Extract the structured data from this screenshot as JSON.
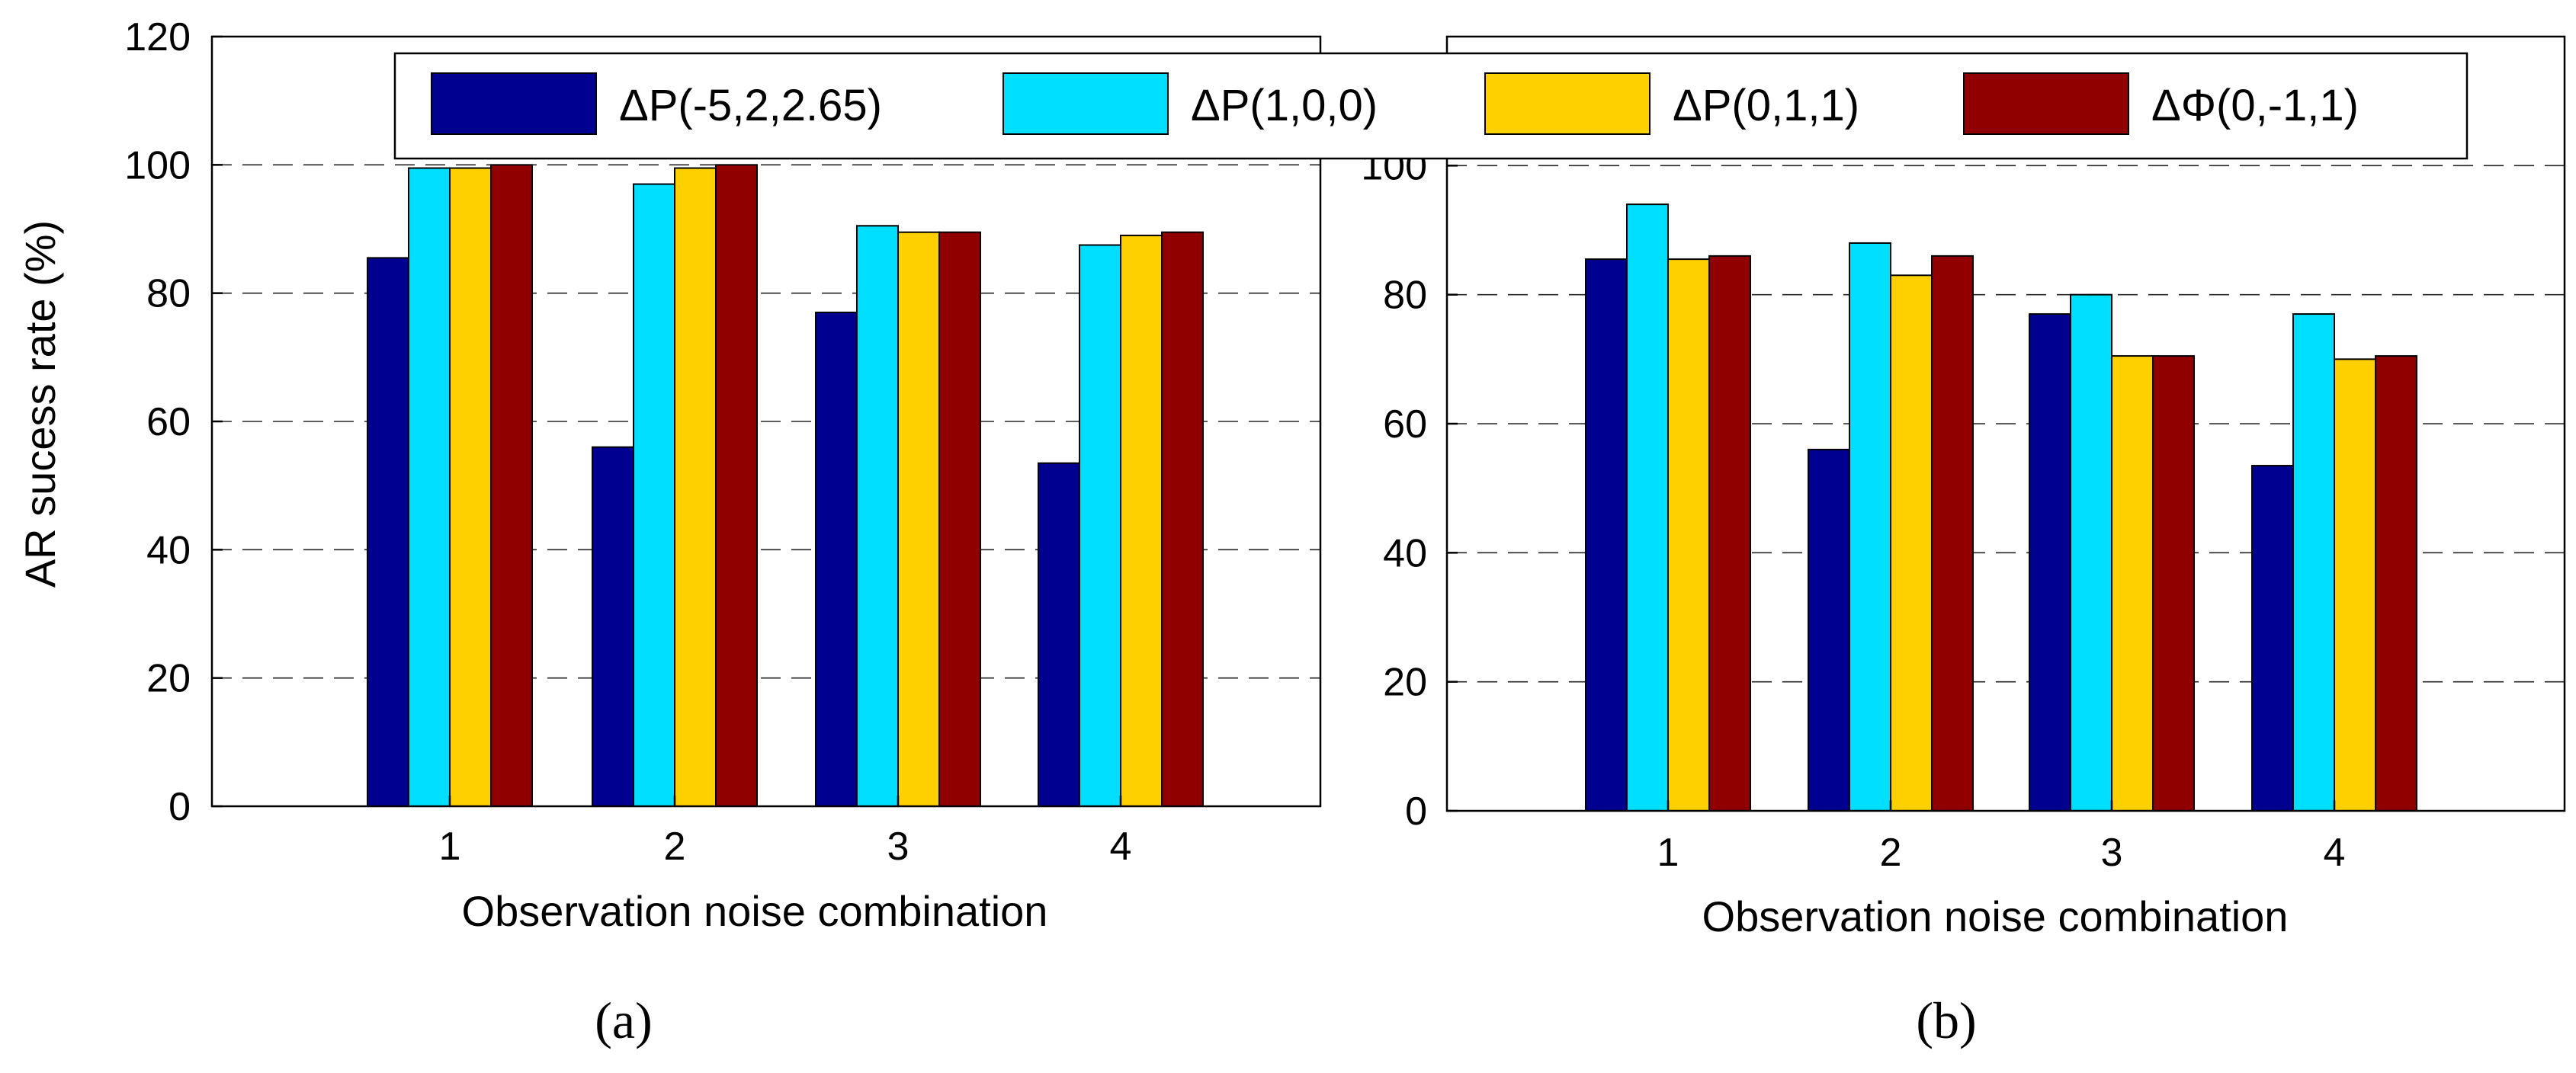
{
  "chart_data": [
    {
      "type": "bar",
      "panel_label": "(a)",
      "title": "",
      "xlabel": "Observation noise combination",
      "ylabel": "AR sucess rate (%)",
      "ylim": [
        0,
        120
      ],
      "yticks": [
        "0",
        "20",
        "40",
        "60",
        "80",
        "100",
        "120"
      ],
      "grid": "horizontal dashed",
      "categories": [
        "1",
        "2",
        "3",
        "4"
      ],
      "series": [
        {
          "name": "ΔP(-5,2,2.65)",
          "color": "#000090",
          "values": [
            85.5,
            56,
            77,
            53.5
          ]
        },
        {
          "name": "ΔP(1,0,0)",
          "color": "#00dfff",
          "values": [
            99.5,
            97,
            90.5,
            87.5
          ]
        },
        {
          "name": "ΔP(0,1,1)",
          "color": "#ffd000",
          "values": [
            99.5,
            99.5,
            89.5,
            89
          ]
        },
        {
          "name": "ΔΦ(0,-1,1)",
          "color": "#900000",
          "values": [
            100,
            100,
            89.5,
            89.5
          ]
        }
      ]
    },
    {
      "type": "bar",
      "panel_label": "(b)",
      "title": "",
      "xlabel": "Observation noise combination",
      "ylabel": "",
      "ylim": [
        0,
        120
      ],
      "yticks": [
        "0",
        "20",
        "40",
        "60",
        "80",
        "100"
      ],
      "grid": "horizontal dashed",
      "categories": [
        "1",
        "2",
        "3",
        "4"
      ],
      "series": [
        {
          "name": "ΔP(-5,2,2.65)",
          "color": "#000090",
          "values": [
            85.5,
            56,
            77,
            53.5
          ]
        },
        {
          "name": "ΔP(1,0,0)",
          "color": "#00dfff",
          "values": [
            94,
            88,
            80,
            77
          ]
        },
        {
          "name": "ΔP(0,1,1)",
          "color": "#ffd000",
          "values": [
            85.5,
            83,
            70.5,
            70
          ]
        },
        {
          "name": "ΔΦ(0,-1,1)",
          "color": "#900000",
          "values": [
            86,
            86,
            70.5,
            70.5
          ]
        }
      ]
    }
  ],
  "legend": {
    "placement": "top",
    "entries": [
      "ΔP(-5,2,2.65)",
      "ΔP(1,0,0)",
      "ΔP(0,1,1)",
      "ΔΦ(0,-1,1)"
    ],
    "colors": [
      "#000090",
      "#00dfff",
      "#ffd000",
      "#900000"
    ]
  }
}
